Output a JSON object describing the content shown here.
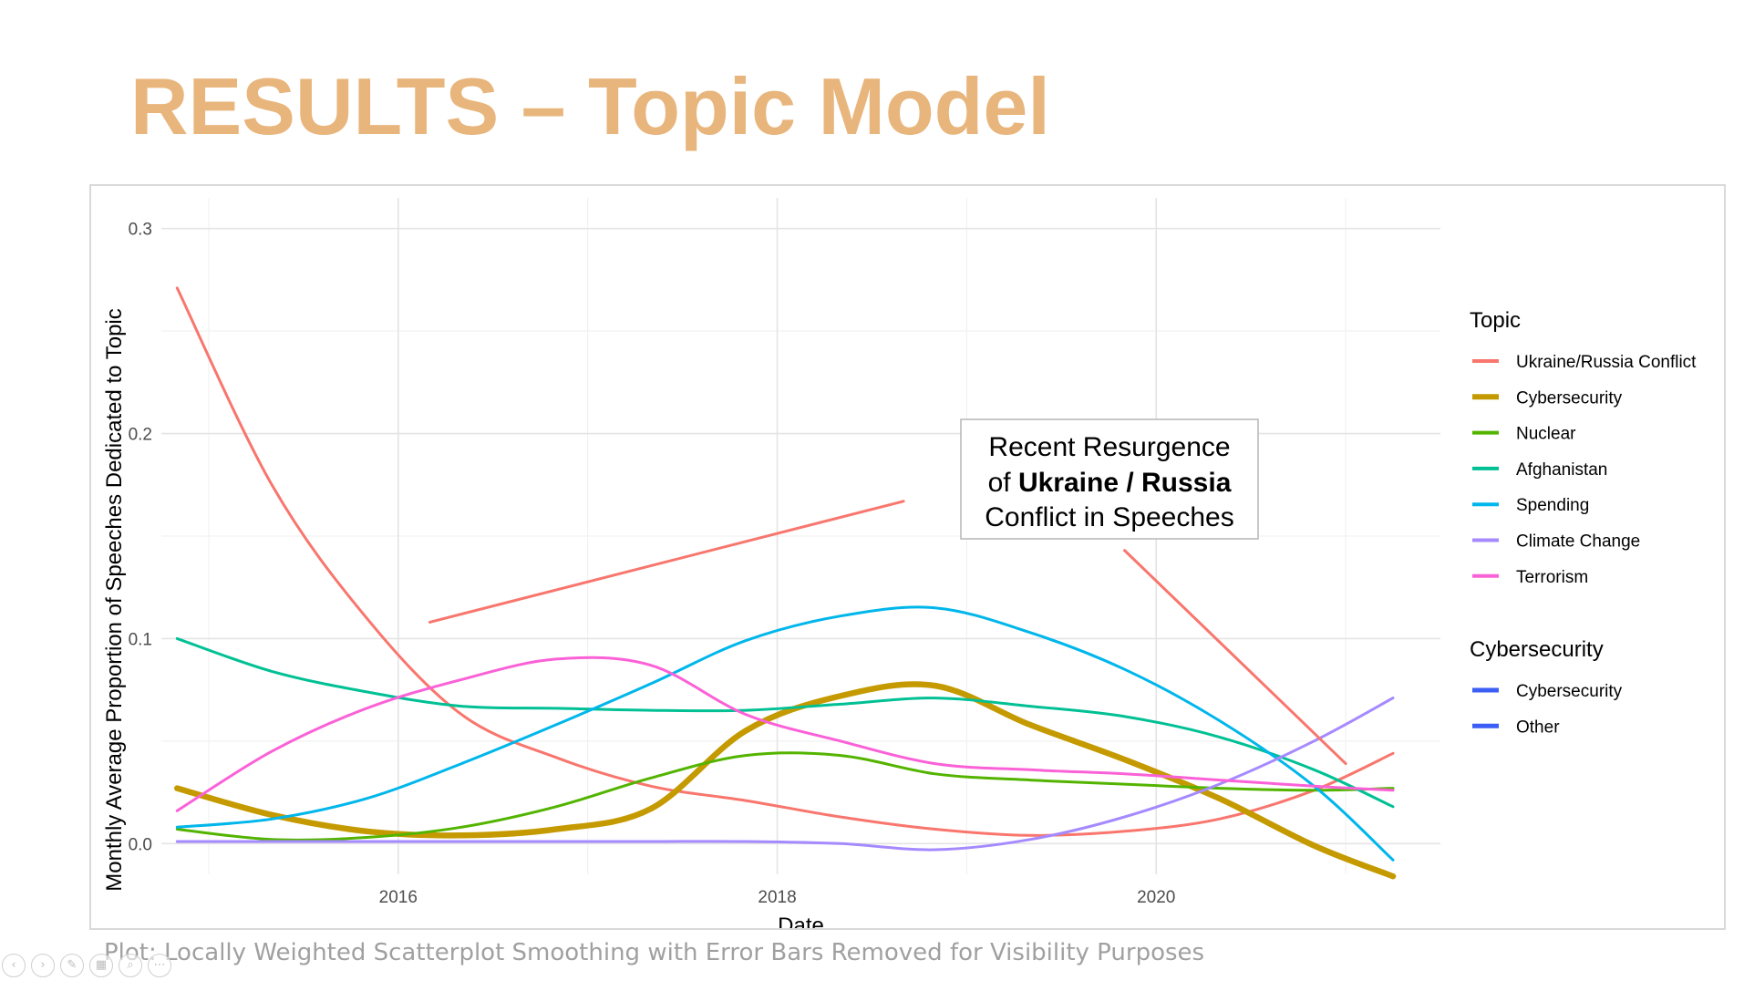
{
  "slide": {
    "title": "RESULTS – Topic Model",
    "caption": "Plot: Locally Weighted Scatterplot Smoothing with Error Bars Removed for Visibility Purposes",
    "controls": [
      "previous-icon",
      "next-icon",
      "pen-icon",
      "slides-icon",
      "zoom-icon",
      "more-icon"
    ]
  },
  "annotation": {
    "line1": "Recent Resurgence",
    "line2_prefix": "of ",
    "line2_bold": "Ukraine / Russia",
    "line3": "Conflict in Speeches"
  },
  "chart_data": {
    "type": "line",
    "xlabel": "Date",
    "ylabel": "Monthly Average Proportion of Speeches Dedicated to Topic",
    "x_ticks": [
      "2016",
      "2018",
      "2020"
    ],
    "y_ticks": [
      "0.0",
      "0.1",
      "0.2",
      "0.3"
    ],
    "xlim": [
      "2014-10-01",
      "2021-07-01"
    ],
    "ylim": [
      -0.015,
      0.315
    ],
    "grid": true,
    "legend_position": "right",
    "legends": [
      {
        "title": "Topic",
        "entries": [
          "Ukraine/Russia Conflict",
          "Cybersecurity",
          "Nuclear",
          "Afghanistan",
          "Spending",
          "Climate Change",
          "Terrorism"
        ]
      },
      {
        "title": "Cybersecurity",
        "entries": [
          "Cybersecurity",
          "Other"
        ]
      }
    ],
    "x": [
      "2014-11",
      "2015-05",
      "2015-11",
      "2016-05",
      "2016-11",
      "2017-05",
      "2017-11",
      "2018-05",
      "2018-11",
      "2019-05",
      "2019-11",
      "2020-05",
      "2020-11",
      "2021-04"
    ],
    "series": [
      {
        "name": "Ukraine/Russia Conflict",
        "color": "#f8766d",
        "width": 3,
        "values": [
          0.271,
          0.175,
          0.11,
          0.063,
          0.042,
          0.028,
          0.021,
          0.013,
          0.007,
          0.004,
          0.006,
          0.012,
          0.026,
          0.044
        ]
      },
      {
        "name": "Cybersecurity",
        "color": "#c49a00",
        "width": 6.5,
        "values": [
          0.027,
          0.014,
          0.006,
          0.004,
          0.007,
          0.017,
          0.055,
          0.072,
          0.077,
          0.058,
          0.041,
          0.022,
          -0.001,
          -0.016
        ]
      },
      {
        "name": "Nuclear",
        "color": "#53b400",
        "width": 3,
        "values": [
          0.007,
          0.002,
          0.003,
          0.008,
          0.018,
          0.032,
          0.043,
          0.043,
          0.034,
          0.031,
          0.029,
          0.027,
          0.026,
          0.027
        ]
      },
      {
        "name": "Afghanistan",
        "color": "#00c094",
        "width": 3,
        "values": [
          0.1,
          0.084,
          0.074,
          0.067,
          0.066,
          0.065,
          0.065,
          0.068,
          0.071,
          0.067,
          0.062,
          0.052,
          0.036,
          0.018
        ]
      },
      {
        "name": "Spending",
        "color": "#00b6eb",
        "width": 3,
        "values": [
          0.008,
          0.012,
          0.022,
          0.039,
          0.058,
          0.078,
          0.099,
          0.111,
          0.115,
          0.103,
          0.085,
          0.06,
          0.028,
          -0.008
        ]
      },
      {
        "name": "Climate Change",
        "color": "#a58aff",
        "width": 3,
        "values": [
          0.001,
          0.001,
          0.001,
          0.001,
          0.001,
          0.001,
          0.001,
          0.0,
          -0.003,
          0.002,
          0.013,
          0.029,
          0.05,
          0.071
        ]
      },
      {
        "name": "Terrorism",
        "color": "#fb61d7",
        "width": 3,
        "values": [
          0.016,
          0.045,
          0.066,
          0.08,
          0.09,
          0.087,
          0.063,
          0.05,
          0.039,
          0.036,
          0.034,
          0.031,
          0.028,
          0.026
        ]
      }
    ],
    "annotation_arrows": [
      {
        "from": [
          "2016-03",
          0.108
        ],
        "to": [
          "2018-09",
          0.167
        ]
      },
      {
        "from": [
          "2019-11",
          0.143
        ],
        "to": [
          "2021-01",
          0.039
        ]
      }
    ],
    "legend_colors": {
      "Cybersecurity": "#3b5ef5",
      "Other": "#3b5ef5"
    }
  }
}
